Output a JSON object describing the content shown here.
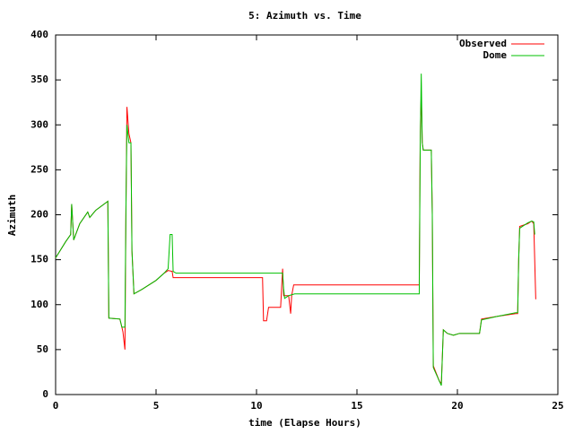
{
  "chart_data": {
    "type": "line",
    "title": "5: Azimuth vs. Time",
    "x_label": "time (Elapse Hours)",
    "y_label": "Azimuth",
    "xlim": [
      0,
      25
    ],
    "xticks": [
      0,
      5,
      10,
      15,
      20,
      25
    ],
    "ylim": [
      0,
      400
    ],
    "yticks": [
      0,
      50,
      100,
      150,
      200,
      250,
      300,
      350,
      400
    ],
    "legend": "upper right",
    "series": [
      {
        "name": "Observed",
        "color": "#ff0000",
        "x": [
          0,
          0.5,
          0.75,
          0.8,
          0.9,
          1.2,
          1.6,
          1.7,
          2.0,
          2.6,
          2.65,
          3.2,
          3.35,
          3.45,
          3.5,
          3.55,
          3.65,
          3.75,
          3.8,
          3.9,
          4.3,
          5.0,
          5.4,
          5.6,
          5.8,
          5.85,
          10.3,
          10.35,
          10.5,
          10.6,
          11.2,
          11.3,
          11.35,
          11.6,
          11.7,
          11.75,
          11.85,
          18.1,
          18.15,
          18.2,
          18.25,
          18.3,
          18.7,
          18.75,
          18.8,
          19.1,
          19.2,
          19.3,
          19.5,
          19.8,
          20.1,
          21.1,
          21.2,
          22.0,
          22.9,
          23.0,
          23.05,
          23.1,
          23.5,
          23.7,
          23.8,
          23.9
        ],
        "values": [
          152,
          170,
          178,
          212,
          172,
          190,
          203,
          197,
          205,
          215,
          85,
          84,
          70,
          50,
          200,
          320,
          290,
          280,
          160,
          112,
          117,
          127,
          135,
          138,
          137,
          130,
          130,
          82,
          82,
          97,
          97,
          140,
          110,
          110,
          90,
          110,
          122,
          122,
          290,
          335,
          280,
          272,
          272,
          200,
          32,
          15,
          12,
          72,
          68,
          66,
          68,
          68,
          84,
          87,
          90,
          90,
          150,
          187,
          190,
          193,
          190,
          106
        ]
      },
      {
        "name": "Dome",
        "color": "#00c000",
        "x": [
          0,
          0.5,
          0.75,
          0.8,
          0.9,
          1.2,
          1.6,
          1.7,
          2.0,
          2.6,
          2.65,
          3.2,
          3.3,
          3.45,
          3.5,
          3.55,
          3.65,
          3.75,
          3.8,
          3.9,
          4.3,
          5.0,
          5.4,
          5.6,
          5.7,
          5.8,
          5.85,
          6.0,
          11.3,
          11.35,
          11.4,
          11.6,
          11.9,
          18.1,
          18.15,
          18.2,
          18.25,
          18.3,
          18.7,
          18.75,
          18.8,
          19.1,
          19.2,
          19.3,
          19.5,
          19.8,
          20.1,
          21.1,
          21.2,
          22.0,
          22.9,
          23.0,
          23.05,
          23.1,
          23.5,
          23.7,
          23.8,
          23.85
        ],
        "values": [
          152,
          170,
          178,
          212,
          172,
          190,
          203,
          197,
          205,
          215,
          85,
          84,
          75,
          75,
          205,
          300,
          280,
          280,
          160,
          112,
          117,
          127,
          135,
          140,
          178,
          178,
          137,
          135,
          135,
          118,
          107,
          110,
          112,
          112,
          280,
          357,
          280,
          272,
          272,
          200,
          30,
          15,
          10,
          72,
          68,
          66,
          68,
          68,
          83,
          87,
          91,
          91,
          150,
          185,
          191,
          193,
          192,
          178
        ]
      }
    ]
  }
}
